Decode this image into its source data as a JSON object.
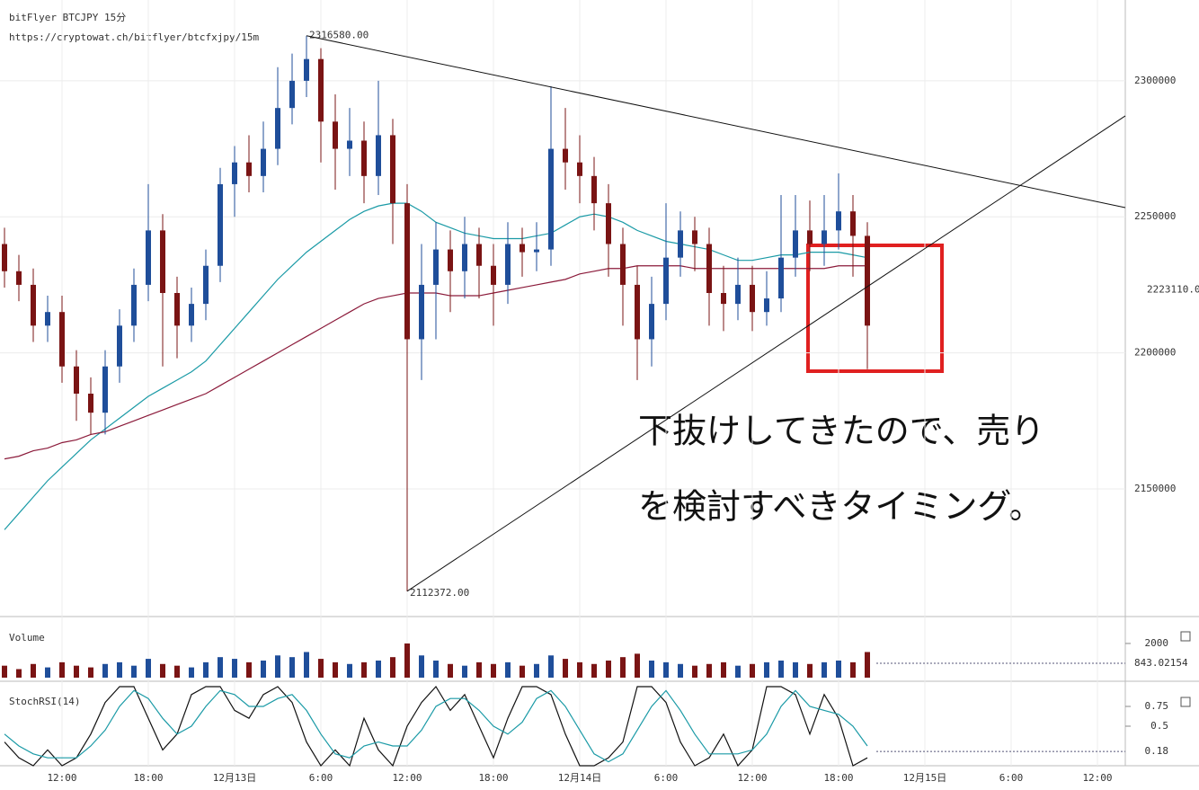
{
  "chart_data": [
    {
      "type": "candlestick",
      "title": "bitFlyer BTCJPY 15分",
      "subtitle": "https://cryptowat.ch/bitflyer/btcfxjpy/15m",
      "categories": [
        null,
        null,
        null,
        null,
        "12:00",
        null,
        null,
        null,
        null,
        null,
        "18:00",
        null,
        null,
        null,
        null,
        null,
        "12月13日",
        null,
        null,
        null,
        null,
        null,
        "6:00",
        null,
        null,
        null,
        null,
        null,
        "12:00",
        null,
        null,
        null,
        null,
        null,
        "18:00",
        null,
        null,
        null,
        null,
        null,
        "12月14日",
        null,
        null,
        null,
        null,
        null,
        "6:00",
        null,
        null,
        null,
        null,
        null,
        "12:00",
        null,
        null,
        null,
        null,
        null,
        "18:00",
        null,
        null,
        null,
        null,
        null,
        "12月15日",
        null,
        null,
        null,
        null,
        null,
        "6:00",
        null,
        null,
        null,
        null,
        null,
        "12:00",
        null
      ],
      "open": [
        2240000,
        2230000,
        2225000,
        2210000,
        2215000,
        2195000,
        2185000,
        2178000,
        2195000,
        2210000,
        2225000,
        2245000,
        2222000,
        2210000,
        2218000,
        2232000,
        2262000,
        2270000,
        2265000,
        2275000,
        2290000,
        2300000,
        2308000,
        2285000,
        2275000,
        2278000,
        2265000,
        2280000,
        2255000,
        2205000,
        2225000,
        2238000,
        2230000,
        2240000,
        2232000,
        2225000,
        2240000,
        2237000,
        2238000,
        2275000,
        2270000,
        2265000,
        2255000,
        2240000,
        2225000,
        2205000,
        2218000,
        2235000,
        2245000,
        2240000,
        2222000,
        2218000,
        2225000,
        2215000,
        2220000,
        2235000,
        2245000,
        2240000,
        2245000,
        2252000,
        2243000,
        null,
        null,
        null,
        null,
        null,
        null,
        null,
        null,
        null,
        null,
        null,
        null,
        null,
        null,
        null,
        null,
        null
      ],
      "high": [
        2246000,
        2236000,
        2231000,
        2221000,
        2221000,
        2201000,
        2191000,
        2201000,
        2216000,
        2231000,
        2262000,
        2251000,
        2228000,
        2224000,
        2238000,
        2268000,
        2276000,
        2280000,
        2285000,
        2305000,
        2310000,
        2316580,
        2312000,
        2295000,
        2290000,
        2285000,
        2300000,
        2286000,
        2262000,
        2240000,
        2248000,
        2245000,
        2250000,
        2246000,
        2240000,
        2248000,
        2246000,
        2248000,
        2298000,
        2290000,
        2280000,
        2272000,
        2262000,
        2246000,
        2232000,
        2228000,
        2255000,
        2252000,
        2250000,
        2246000,
        2232000,
        2235000,
        2232000,
        2230000,
        2258000,
        2258000,
        2256000,
        2258000,
        2266000,
        2258000,
        2248000,
        null,
        null,
        null,
        null,
        null,
        null,
        null,
        null,
        null,
        null,
        null,
        null,
        null,
        null,
        null,
        null,
        null
      ],
      "low": [
        2224000,
        2219000,
        2204000,
        2204000,
        2189000,
        2175000,
        2170000,
        2170000,
        2189000,
        2204000,
        2219000,
        2195000,
        2198000,
        2204000,
        2212000,
        2226000,
        2250000,
        2259000,
        2259000,
        2269000,
        2284000,
        2294000,
        2270000,
        2260000,
        2265000,
        2255000,
        2258000,
        2240000,
        2112372,
        2190000,
        2205000,
        2215000,
        2220000,
        2220000,
        2210000,
        2218000,
        2228000,
        2230000,
        2232000,
        2260000,
        2255000,
        2245000,
        2228000,
        2210000,
        2190000,
        2195000,
        2212000,
        2228000,
        2230000,
        2210000,
        2208000,
        2212000,
        2208000,
        2210000,
        2215000,
        2228000,
        2230000,
        2232000,
        2238000,
        2228000,
        2194000,
        null,
        null,
        null,
        null,
        null,
        null,
        null,
        null,
        null,
        null,
        null,
        null,
        null,
        null,
        null,
        null,
        null
      ],
      "close": [
        2230000,
        2225000,
        2210000,
        2215000,
        2195000,
        2185000,
        2178000,
        2195000,
        2210000,
        2225000,
        2245000,
        2222000,
        2210000,
        2218000,
        2232000,
        2262000,
        2270000,
        2265000,
        2275000,
        2290000,
        2300000,
        2308000,
        2285000,
        2275000,
        2278000,
        2265000,
        2280000,
        2255000,
        2205000,
        2225000,
        2238000,
        2230000,
        2240000,
        2232000,
        2225000,
        2240000,
        2237000,
        2238000,
        2275000,
        2270000,
        2265000,
        2255000,
        2240000,
        2225000,
        2205000,
        2218000,
        2235000,
        2245000,
        2240000,
        2222000,
        2218000,
        2225000,
        2215000,
        2220000,
        2235000,
        2245000,
        2240000,
        2245000,
        2252000,
        2243000,
        2210000,
        null,
        null,
        null,
        null,
        null,
        null,
        null,
        null,
        null,
        null,
        null,
        null,
        null,
        null,
        null,
        null,
        null
      ],
      "up_color": "#1f4e9a",
      "down_color": "#7a1414",
      "series": [
        {
          "color": "#1a9aa6",
          "values": [
            2135000,
            2141000,
            2147000,
            2153000,
            2158000,
            2163000,
            2168000,
            2172000,
            2176000,
            2180000,
            2184000,
            2187000,
            2190000,
            2193000,
            2197000,
            2203000,
            2209000,
            2215000,
            2221000,
            2227000,
            2232000,
            2237000,
            2241000,
            2245000,
            2249000,
            2252000,
            2254000,
            2255000,
            2255000,
            2252000,
            2248000,
            2246000,
            2244000,
            2243000,
            2242000,
            2242000,
            2242000,
            2243000,
            2244000,
            2247000,
            2250000,
            2251000,
            2250000,
            2248000,
            2245000,
            2243000,
            2241000,
            2240000,
            2239000,
            2238000,
            2236000,
            2234000,
            2234000,
            2235000,
            2236000,
            2236000,
            2237000,
            2237000,
            2237000,
            2236000,
            2235000,
            null,
            null,
            null,
            null,
            null,
            null,
            null,
            null,
            null,
            null,
            null,
            null,
            null,
            null,
            null,
            null,
            null
          ]
        },
        {
          "color": "#8b1a3a",
          "values": [
            2161000,
            2162000,
            2164000,
            2165000,
            2167000,
            2168000,
            2170000,
            2171000,
            2173000,
            2175000,
            2177000,
            2179000,
            2181000,
            2183000,
            2185000,
            2188000,
            2191000,
            2194000,
            2197000,
            2200000,
            2203000,
            2206000,
            2209000,
            2212000,
            2215000,
            2218000,
            2220000,
            2221000,
            2222000,
            2222000,
            2222000,
            2221000,
            2221000,
            2221000,
            2222000,
            2223000,
            2224000,
            2225000,
            2226000,
            2227000,
            2229000,
            2230000,
            2231000,
            2231000,
            2232000,
            2232000,
            2232000,
            2232000,
            2231000,
            2231000,
            2231000,
            2231000,
            2231000,
            2231000,
            2231000,
            2231000,
            2231000,
            2231000,
            2232000,
            2232000,
            2232000,
            null,
            null,
            null,
            null,
            null,
            null,
            null,
            null,
            null,
            null,
            null,
            null,
            null,
            null,
            null,
            null,
            null
          ]
        }
      ],
      "ylim": [
        2103400,
        2329700
      ],
      "yticks": [
        2300000,
        2250000,
        2200000,
        2150000
      ],
      "grid": true,
      "extremes": [
        {
          "value": 2316580,
          "label": "2316580.00"
        },
        {
          "value": 2112372,
          "label": "2112372.00"
        }
      ],
      "trendlines": [
        {
          "from": 2316580,
          "to": 2253400
        },
        {
          "from": 2112372,
          "to": 2287100
        }
      ],
      "price_marker": {
        "value": 2223110,
        "label": "2223110.0"
      }
    },
    {
      "type": "bar",
      "title": "Volume",
      "values": [
        700,
        500,
        800,
        600,
        900,
        700,
        600,
        800,
        900,
        700,
        1100,
        800,
        700,
        600,
        900,
        1200,
        1100,
        900,
        1000,
        1300,
        1200,
        1500,
        1100,
        900,
        800,
        900,
        1000,
        1200,
        2000,
        1300,
        1000,
        800,
        700,
        900,
        800,
        900,
        700,
        800,
        1300,
        1100,
        900,
        800,
        1000,
        1200,
        1400,
        1000,
        900,
        800,
        700,
        800,
        900,
        700,
        800,
        900,
        1000,
        900,
        800,
        900,
        1000,
        900,
        1500,
        null,
        null,
        null,
        null,
        null,
        null,
        null,
        null,
        null,
        null,
        null,
        null,
        null,
        null,
        null,
        null,
        null
      ],
      "ylim": [
        0,
        3470
      ],
      "yticks": [
        2000,
        843.02154
      ]
    },
    {
      "type": "line",
      "title": "StochRSI(14)",
      "series": [
        {
          "color": "#111111",
          "values": [
            0.3,
            0.1,
            0,
            0.2,
            0,
            0.1,
            0.4,
            0.8,
            1,
            1,
            0.6,
            0.2,
            0.4,
            0.9,
            1,
            1,
            0.7,
            0.6,
            0.9,
            1,
            0.8,
            0.3,
            0,
            0.2,
            0,
            0.6,
            0.2,
            0,
            0.5,
            0.8,
            1,
            0.7,
            0.9,
            0.5,
            0.1,
            0.6,
            1,
            1,
            0.9,
            0.4,
            0,
            0,
            0.1,
            0.3,
            1,
            1,
            0.8,
            0.3,
            0,
            0.1,
            0.4,
            0,
            0.2,
            1,
            1,
            0.9,
            0.4,
            0.9,
            0.6,
            0,
            0.1,
            null,
            null,
            null,
            null,
            null,
            null,
            null,
            null,
            null,
            null,
            null,
            null,
            null,
            null,
            null,
            null,
            null
          ]
        },
        {
          "color": "#1a9aa6",
          "values": [
            0.4,
            0.25,
            0.15,
            0.1,
            0.1,
            0.1,
            0.25,
            0.45,
            0.75,
            0.95,
            0.85,
            0.6,
            0.4,
            0.5,
            0.75,
            0.95,
            0.9,
            0.75,
            0.75,
            0.85,
            0.9,
            0.7,
            0.4,
            0.15,
            0.1,
            0.25,
            0.3,
            0.25,
            0.25,
            0.45,
            0.75,
            0.85,
            0.85,
            0.7,
            0.5,
            0.4,
            0.55,
            0.85,
            0.95,
            0.75,
            0.45,
            0.15,
            0.05,
            0.15,
            0.45,
            0.75,
            0.95,
            0.7,
            0.4,
            0.15,
            0.15,
            0.15,
            0.2,
            0.4,
            0.75,
            0.95,
            0.75,
            0.7,
            0.65,
            0.5,
            0.25,
            null,
            null,
            null,
            null,
            null,
            null,
            null,
            null,
            null,
            null,
            null,
            null,
            null,
            null,
            null,
            null,
            null
          ]
        }
      ],
      "ylim": [
        0,
        1
      ],
      "yticks": [
        0.75,
        0.5,
        0.18
      ]
    }
  ],
  "annotation": {
    "lines": [
      "下抜けしてきたので、売り",
      "を検討すべきタイミング。"
    ]
  }
}
